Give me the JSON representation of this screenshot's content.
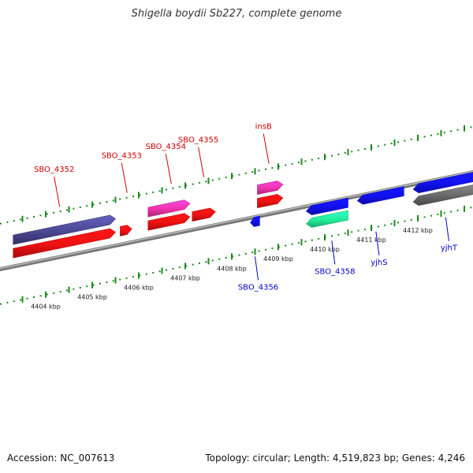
{
  "title": "Shigella boydii Sb227, complete genome",
  "footer": {
    "accession": "Accession: NC_007613",
    "topology": "Topology: circular; Length: 4,519,823 bp; Genes: 4,246"
  },
  "colors": {
    "backbone": "#888888",
    "tick": "#1a8a1a",
    "forward_label": "#cc0000",
    "reverse_label": "#0000cc"
  },
  "ticks": [
    {
      "label": "4404 kbp",
      "x": 4404
    },
    {
      "label": "4405 kbp",
      "x": 4405
    },
    {
      "label": "4406 kbp",
      "x": 4406
    },
    {
      "label": "4407 kbp",
      "x": 4407
    },
    {
      "label": "4408 kbp",
      "x": 4408
    },
    {
      "label": "4409 kbp",
      "x": 4409
    },
    {
      "label": "4410 kbp",
      "x": 4410
    },
    {
      "label": "4411 kbp",
      "x": 4411
    },
    {
      "label": "4412 kbp",
      "x": 4412
    }
  ],
  "features": [
    {
      "kind": "cds",
      "strand": "+",
      "color": "#4a4890",
      "start": 4403.3,
      "end": 4405.5,
      "lane": "fwd_outer",
      "label": ""
    },
    {
      "kind": "cds",
      "strand": "+",
      "color": "#ee1111",
      "start": 4403.3,
      "end": 4405.5,
      "lane": "fwd_inner",
      "label": "SBO_4352",
      "label_pos": 4404.3
    },
    {
      "kind": "cds",
      "strand": "+",
      "color": "#ee1111",
      "start": 4405.6,
      "end": 4405.85,
      "lane": "fwd_inner",
      "label": "SBO_4353",
      "label_pos": 4405.75
    },
    {
      "kind": "cds",
      "strand": "+",
      "color": "#ee33aa",
      "start": 4406.2,
      "end": 4407.1,
      "lane": "fwd_outer",
      "label": "SBO_4354",
      "label_pos": 4406.7
    },
    {
      "kind": "cds",
      "strand": "+",
      "color": "#ee1111",
      "start": 4406.2,
      "end": 4407.1,
      "lane": "fwd_inner",
      "label": "",
      "label_pos": 0
    },
    {
      "kind": "cds",
      "strand": "+",
      "color": "#ee1111",
      "start": 4407.15,
      "end": 4407.65,
      "lane": "fwd_inner",
      "label": "SBO_4355",
      "label_pos": 4407.4
    },
    {
      "kind": "cds",
      "strand": "+",
      "color": "#ee33aa",
      "start": 4408.55,
      "end": 4409.1,
      "lane": "fwd_outer",
      "label": "insB",
      "label_pos": 4408.8
    },
    {
      "kind": "cds",
      "strand": "+",
      "color": "#ee1111",
      "start": 4408.55,
      "end": 4409.1,
      "lane": "fwd_inner",
      "label": "",
      "label_pos": 0
    },
    {
      "kind": "cds",
      "strand": "-",
      "color": "#1111ee",
      "start": 4408.4,
      "end": 4408.6,
      "lane": "rev_inner",
      "label": "SBO_4356",
      "label_pos": 4408.5
    },
    {
      "kind": "cds",
      "strand": "-",
      "color": "#1111ee",
      "start": 4409.6,
      "end": 4410.5,
      "lane": "rev_inner",
      "label": "",
      "label_pos": 0
    },
    {
      "kind": "cds",
      "strand": "-",
      "color": "#22ee99",
      "start": 4409.6,
      "end": 4410.5,
      "lane": "rev_outer",
      "label": "SBO_4358",
      "label_pos": 4410.15
    },
    {
      "kind": "cds",
      "strand": "-",
      "color": "#1111ee",
      "start": 4410.7,
      "end": 4411.7,
      "lane": "rev_inner",
      "label": "yjhS",
      "label_pos": 4411.1
    },
    {
      "kind": "cds",
      "strand": "-",
      "color": "#1111ee",
      "start": 4411.9,
      "end": 4413.2,
      "lane": "rev_inner",
      "label": "",
      "label_pos": 0
    },
    {
      "kind": "cds",
      "strand": "-",
      "color": "#666666",
      "start": 4411.9,
      "end": 4413.2,
      "lane": "rev_outer",
      "label": "yjhT",
      "label_pos": 4412.6
    }
  ]
}
